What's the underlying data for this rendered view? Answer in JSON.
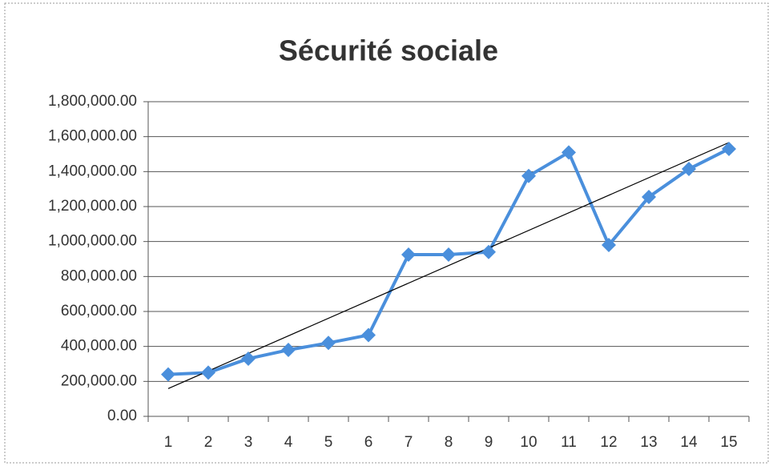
{
  "chart_data": {
    "type": "line",
    "title": "Sécurité sociale",
    "categories": [
      "1",
      "2",
      "3",
      "4",
      "5",
      "6",
      "7",
      "8",
      "9",
      "10",
      "11",
      "12",
      "13",
      "14",
      "15"
    ],
    "series": [
      {
        "name": "Sécurité sociale",
        "color": "#4a8fdc",
        "values": [
          240000,
          250000,
          330000,
          380000,
          420000,
          465000,
          925000,
          925000,
          940000,
          1375000,
          1510000,
          980000,
          1255000,
          1415000,
          1530000
        ]
      }
    ],
    "ylim": [
      0,
      1800000
    ],
    "yticks": [
      {
        "value": 0,
        "label": "0.00"
      },
      {
        "value": 200000,
        "label": "200,000.00"
      },
      {
        "value": 400000,
        "label": "400,000.00"
      },
      {
        "value": 600000,
        "label": "600,000.00"
      },
      {
        "value": 800000,
        "label": "800,000.00"
      },
      {
        "value": 1000000,
        "label": "1,000,000.00"
      },
      {
        "value": 1200000,
        "label": "1,200,000.00"
      },
      {
        "value": 1400000,
        "label": "1,400,000.00"
      },
      {
        "value": 1600000,
        "label": "1,600,000.00"
      },
      {
        "value": 1800000,
        "label": "1,800,000.00"
      }
    ],
    "grid": true,
    "trendline": "linear",
    "trendline_color": "#000000"
  }
}
